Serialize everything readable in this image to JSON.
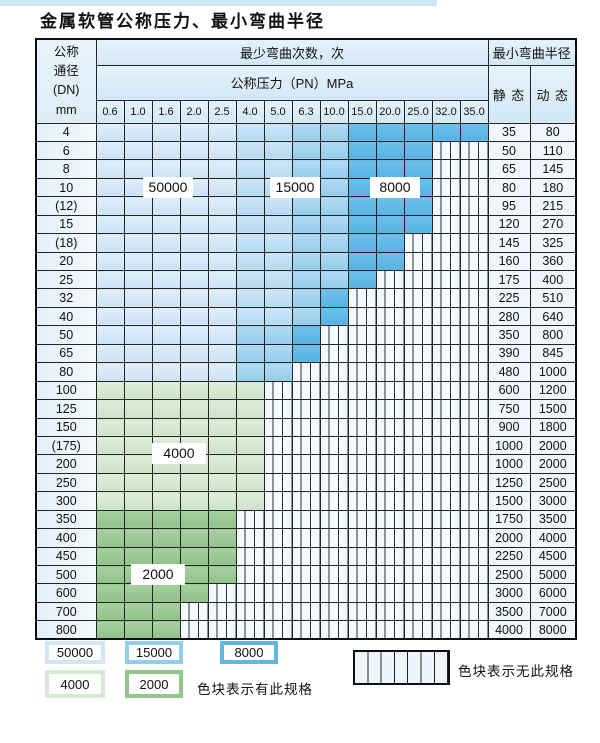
{
  "title": "金属软管公称压力、最小弯曲半径",
  "table": {
    "dn_header": [
      "公称",
      "通径",
      "(DN)",
      "mm"
    ],
    "cycles_header": "最少弯曲次数，次",
    "pressure_header": "公称压力（PN）MPa",
    "radius_header": "最小弯曲半径",
    "static_label": "静 态",
    "dynamic_label": "动 态",
    "pressure_columns": [
      "0.6",
      "1.0",
      "1.6",
      "2.0",
      "2.5",
      "4.0",
      "5.0",
      "6.3",
      "10.0",
      "15.0",
      "20.0",
      "25.0",
      "32.0",
      "35.0"
    ],
    "cell_legend": {
      "b1": "50000",
      "b2": "50000",
      "b3": "15000",
      "b4": "8000",
      "g1": "4000",
      "g2": "2000",
      "x": "无此规格"
    },
    "rows": [
      {
        "dn": "4",
        "static": "35",
        "dynamic": "80",
        "cells": [
          "b1",
          "b1",
          "b1",
          "b1",
          "b1",
          "b2",
          "b2",
          "b3",
          "b3",
          "b4",
          "b4",
          "b4",
          "b4",
          "b4"
        ]
      },
      {
        "dn": "6",
        "static": "50",
        "dynamic": "110",
        "cells": [
          "b1",
          "b1",
          "b1",
          "b1",
          "b1",
          "b2",
          "b2",
          "b3",
          "b3",
          "b4",
          "b4",
          "b4",
          "x",
          "x"
        ]
      },
      {
        "dn": "8",
        "static": "65",
        "dynamic": "145",
        "cells": [
          "b1",
          "b1",
          "b1",
          "b1",
          "b1",
          "b2",
          "b2",
          "b3",
          "b3",
          "b4",
          "b4",
          "b4",
          "x",
          "x"
        ]
      },
      {
        "dn": "10",
        "static": "80",
        "dynamic": "180",
        "cells": [
          "b1",
          "b1",
          "b1",
          "b1",
          "b1",
          "b2",
          "b2",
          "b3",
          "b3",
          "b4",
          "b4",
          "b4",
          "x",
          "x"
        ]
      },
      {
        "dn": "(12)",
        "static": "95",
        "dynamic": "215",
        "cells": [
          "b1",
          "b1",
          "b1",
          "b1",
          "b1",
          "b2",
          "b2",
          "b3",
          "b3",
          "b4",
          "b4",
          "b4",
          "x",
          "x"
        ]
      },
      {
        "dn": "15",
        "static": "120",
        "dynamic": "270",
        "cells": [
          "b1",
          "b1",
          "b1",
          "b1",
          "b1",
          "b2",
          "b2",
          "b3",
          "b3",
          "b4",
          "b4",
          "b4",
          "x",
          "x"
        ]
      },
      {
        "dn": "(18)",
        "static": "145",
        "dynamic": "325",
        "cells": [
          "b1",
          "b1",
          "b1",
          "b1",
          "b1",
          "b2",
          "b2",
          "b3",
          "b3",
          "b4",
          "b4",
          "x",
          "x",
          "x"
        ]
      },
      {
        "dn": "20",
        "static": "160",
        "dynamic": "360",
        "cells": [
          "b1",
          "b1",
          "b1",
          "b1",
          "b1",
          "b2",
          "b2",
          "b3",
          "b3",
          "b4",
          "b4",
          "x",
          "x",
          "x"
        ]
      },
      {
        "dn": "25",
        "static": "175",
        "dynamic": "400",
        "cells": [
          "b1",
          "b1",
          "b1",
          "b1",
          "b1",
          "b2",
          "b2",
          "b3",
          "b3",
          "b4",
          "x",
          "x",
          "x",
          "x"
        ]
      },
      {
        "dn": "32",
        "static": "225",
        "dynamic": "510",
        "cells": [
          "b1",
          "b1",
          "b1",
          "b1",
          "b1",
          "b2",
          "b2",
          "b3",
          "b4",
          "x",
          "x",
          "x",
          "x",
          "x"
        ]
      },
      {
        "dn": "40",
        "static": "280",
        "dynamic": "640",
        "cells": [
          "b1",
          "b1",
          "b1",
          "b1",
          "b1",
          "b2",
          "b2",
          "b3",
          "b4",
          "x",
          "x",
          "x",
          "x",
          "x"
        ]
      },
      {
        "dn": "50",
        "static": "350",
        "dynamic": "800",
        "cells": [
          "b1",
          "b1",
          "b1",
          "b1",
          "b1",
          "b3",
          "b3",
          "b4",
          "x",
          "x",
          "x",
          "x",
          "x",
          "x"
        ]
      },
      {
        "dn": "65",
        "static": "390",
        "dynamic": "845",
        "cells": [
          "b1",
          "b1",
          "b1",
          "b1",
          "b1",
          "b3",
          "b3",
          "b4",
          "x",
          "x",
          "x",
          "x",
          "x",
          "x"
        ]
      },
      {
        "dn": "80",
        "static": "480",
        "dynamic": "1000",
        "cells": [
          "b1",
          "b1",
          "b1",
          "b1",
          "b1",
          "b3",
          "b3",
          "x",
          "x",
          "x",
          "x",
          "x",
          "x",
          "x"
        ]
      },
      {
        "dn": "100",
        "static": "600",
        "dynamic": "1200",
        "cells": [
          "g1",
          "g1",
          "g1",
          "g1",
          "g1",
          "g1",
          "x",
          "x",
          "x",
          "x",
          "x",
          "x",
          "x",
          "x"
        ]
      },
      {
        "dn": "125",
        "static": "750",
        "dynamic": "1500",
        "cells": [
          "g1",
          "g1",
          "g1",
          "g1",
          "g1",
          "g1",
          "x",
          "x",
          "x",
          "x",
          "x",
          "x",
          "x",
          "x"
        ]
      },
      {
        "dn": "150",
        "static": "900",
        "dynamic": "1800",
        "cells": [
          "g1",
          "g1",
          "g1",
          "g1",
          "g1",
          "g1",
          "x",
          "x",
          "x",
          "x",
          "x",
          "x",
          "x",
          "x"
        ]
      },
      {
        "dn": "(175)",
        "static": "1000",
        "dynamic": "2000",
        "cells": [
          "g1",
          "g1",
          "g1",
          "g1",
          "g1",
          "g1",
          "x",
          "x",
          "x",
          "x",
          "x",
          "x",
          "x",
          "x"
        ]
      },
      {
        "dn": "200",
        "static": "1000",
        "dynamic": "2000",
        "cells": [
          "g1",
          "g1",
          "g1",
          "g1",
          "g1",
          "g1",
          "x",
          "x",
          "x",
          "x",
          "x",
          "x",
          "x",
          "x"
        ]
      },
      {
        "dn": "250",
        "static": "1250",
        "dynamic": "2500",
        "cells": [
          "g1",
          "g1",
          "g1",
          "g1",
          "g1",
          "g1",
          "x",
          "x",
          "x",
          "x",
          "x",
          "x",
          "x",
          "x"
        ]
      },
      {
        "dn": "300",
        "static": "1500",
        "dynamic": "3000",
        "cells": [
          "g1",
          "g1",
          "g1",
          "g1",
          "g1",
          "g1",
          "x",
          "x",
          "x",
          "x",
          "x",
          "x",
          "x",
          "x"
        ]
      },
      {
        "dn": "350",
        "static": "1750",
        "dynamic": "3500",
        "cells": [
          "g2",
          "g2",
          "g2",
          "g2",
          "g2",
          "x",
          "x",
          "x",
          "x",
          "x",
          "x",
          "x",
          "x",
          "x"
        ]
      },
      {
        "dn": "400",
        "static": "2000",
        "dynamic": "4000",
        "cells": [
          "g2",
          "g2",
          "g2",
          "g2",
          "g2",
          "x",
          "x",
          "x",
          "x",
          "x",
          "x",
          "x",
          "x",
          "x"
        ]
      },
      {
        "dn": "450",
        "static": "2250",
        "dynamic": "4500",
        "cells": [
          "g2",
          "g2",
          "g2",
          "g2",
          "g2",
          "x",
          "x",
          "x",
          "x",
          "x",
          "x",
          "x",
          "x",
          "x"
        ]
      },
      {
        "dn": "500",
        "static": "2500",
        "dynamic": "5000",
        "cells": [
          "g2",
          "g2",
          "g2",
          "g2",
          "g2",
          "x",
          "x",
          "x",
          "x",
          "x",
          "x",
          "x",
          "x",
          "x"
        ]
      },
      {
        "dn": "600",
        "static": "3000",
        "dynamic": "6000",
        "cells": [
          "g2",
          "g2",
          "g2",
          "g2",
          "x",
          "x",
          "x",
          "x",
          "x",
          "x",
          "x",
          "x",
          "x",
          "x"
        ]
      },
      {
        "dn": "700",
        "static": "3500",
        "dynamic": "7000",
        "cells": [
          "g2",
          "g2",
          "g2",
          "x",
          "x",
          "x",
          "x",
          "x",
          "x",
          "x",
          "x",
          "x",
          "x",
          "x"
        ]
      },
      {
        "dn": "800",
        "static": "4000",
        "dynamic": "8000",
        "cells": [
          "g2",
          "g2",
          "g2",
          "x",
          "x",
          "x",
          "x",
          "x",
          "x",
          "x",
          "x",
          "x",
          "x",
          "x"
        ]
      }
    ]
  },
  "overlays": {
    "c50000": "50000",
    "c15000": "15000",
    "c8000": "8000",
    "c4000": "4000",
    "c2000": "2000"
  },
  "legend": {
    "items": [
      {
        "label": "50000",
        "color": "#cfe7f6"
      },
      {
        "label": "15000",
        "color": "#90cdee"
      },
      {
        "label": "8000",
        "color": "#5fb7e6"
      },
      {
        "label": "4000",
        "color": "#d6e9d2"
      },
      {
        "label": "2000",
        "color": "#92c78c"
      }
    ],
    "has_spec_note": "色块表示有此规格",
    "no_spec_note": "色块表示无此规格"
  },
  "colors": {
    "cycles_50000": "#d5e9f7",
    "cycles_15000": "#a0d2ee",
    "cycles_8000": "#60b8e7",
    "cycles_4000": "#d6e9d2",
    "cycles_2000": "#9acb94",
    "no_spec_fill": "#f3f9fd",
    "grid_line": "#242424"
  }
}
